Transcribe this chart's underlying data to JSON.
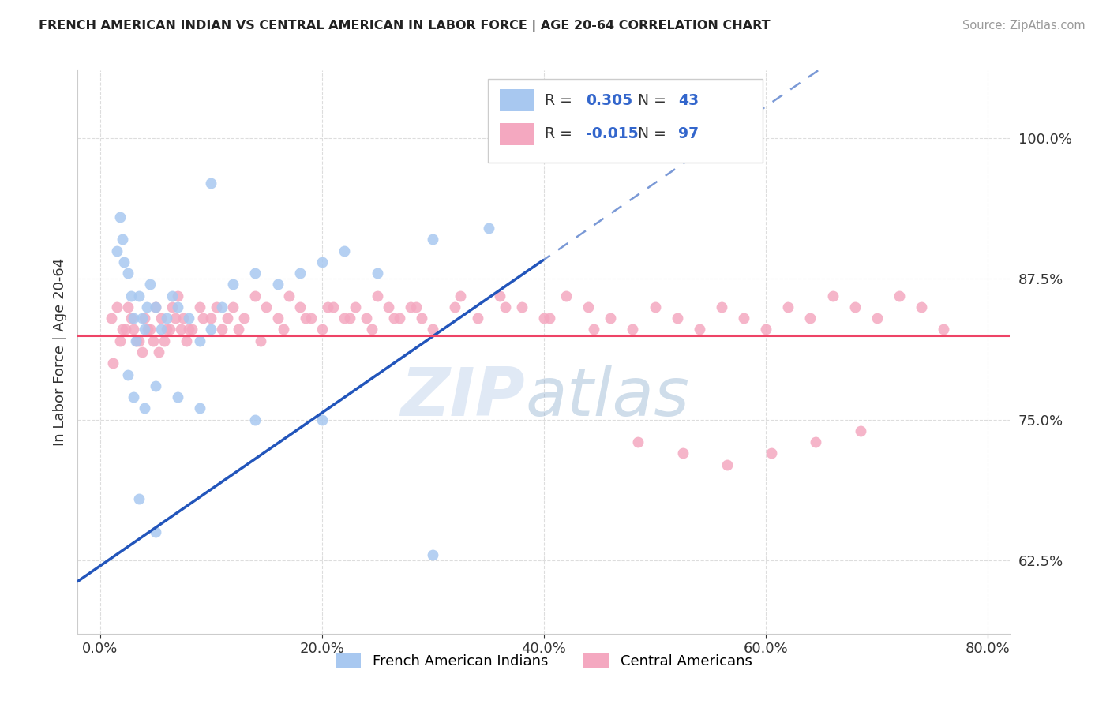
{
  "title": "FRENCH AMERICAN INDIAN VS CENTRAL AMERICAN IN LABOR FORCE | AGE 20-64 CORRELATION CHART",
  "source": "Source: ZipAtlas.com",
  "ylabel": "In Labor Force | Age 20-64",
  "x_tick_labels": [
    "0.0%",
    "20.0%",
    "40.0%",
    "60.0%",
    "80.0%"
  ],
  "x_tick_positions": [
    0.0,
    20.0,
    40.0,
    60.0,
    80.0
  ],
  "y_tick_labels": [
    "62.5%",
    "75.0%",
    "87.5%",
    "100.0%"
  ],
  "y_tick_positions": [
    62.5,
    75.0,
    87.5,
    100.0
  ],
  "xlim": [
    -2.0,
    82.0
  ],
  "ylim": [
    56.0,
    106.0
  ],
  "blue_R": 0.305,
  "blue_N": 43,
  "pink_R": -0.015,
  "pink_N": 97,
  "blue_color": "#A8C8F0",
  "pink_color": "#F4A8C0",
  "blue_line_color": "#2255BB",
  "pink_line_color": "#EE4466",
  "legend_blue_label": "French American Indians",
  "legend_pink_label": "Central Americans",
  "watermark_text": "ZIPatlas",
  "blue_x": [
    1.5,
    1.8,
    2.0,
    2.2,
    2.5,
    2.8,
    3.0,
    3.2,
    3.5,
    3.8,
    4.0,
    4.2,
    4.5,
    5.0,
    5.5,
    6.0,
    6.5,
    7.0,
    8.0,
    9.0,
    10.0,
    11.0,
    12.0,
    14.0,
    16.0,
    18.0,
    20.0,
    22.0,
    25.0,
    30.0,
    35.0,
    2.5,
    3.0,
    4.0,
    5.0,
    7.0,
    9.0,
    14.0,
    3.5,
    5.0,
    10.0,
    20.0,
    30.0
  ],
  "blue_y": [
    90.0,
    93.0,
    91.0,
    89.0,
    88.0,
    86.0,
    84.0,
    82.0,
    86.0,
    84.0,
    83.0,
    85.0,
    87.0,
    85.0,
    83.0,
    84.0,
    86.0,
    85.0,
    84.0,
    82.0,
    83.0,
    85.0,
    87.0,
    88.0,
    87.0,
    88.0,
    89.0,
    90.0,
    88.0,
    91.0,
    92.0,
    79.0,
    77.0,
    76.0,
    78.0,
    77.0,
    76.0,
    75.0,
    68.0,
    65.0,
    96.0,
    75.0,
    63.0
  ],
  "pink_x": [
    1.0,
    1.5,
    2.0,
    2.5,
    3.0,
    3.5,
    4.0,
    4.5,
    5.0,
    5.5,
    6.0,
    6.5,
    7.0,
    7.5,
    8.0,
    9.0,
    10.0,
    11.0,
    12.0,
    13.0,
    14.0,
    15.0,
    16.0,
    17.0,
    18.0,
    19.0,
    20.0,
    21.0,
    22.0,
    23.0,
    24.0,
    25.0,
    26.0,
    27.0,
    28.0,
    29.0,
    30.0,
    32.0,
    34.0,
    36.0,
    38.0,
    40.0,
    42.0,
    44.0,
    46.0,
    48.0,
    50.0,
    52.0,
    54.0,
    56.0,
    58.0,
    60.0,
    62.0,
    64.0,
    66.0,
    68.0,
    70.0,
    72.0,
    74.0,
    76.0,
    1.2,
    1.8,
    2.3,
    2.8,
    3.3,
    3.8,
    4.3,
    4.8,
    5.3,
    5.8,
    6.3,
    6.8,
    7.3,
    7.8,
    8.3,
    9.3,
    10.5,
    11.5,
    12.5,
    14.5,
    16.5,
    18.5,
    20.5,
    22.5,
    24.5,
    26.5,
    28.5,
    32.5,
    36.5,
    40.5,
    44.5,
    48.5,
    52.5,
    56.5,
    60.5,
    64.5,
    68.5
  ],
  "pink_y": [
    84.0,
    85.0,
    83.0,
    85.0,
    83.0,
    82.0,
    84.0,
    83.0,
    85.0,
    84.0,
    83.0,
    85.0,
    86.0,
    84.0,
    83.0,
    85.0,
    84.0,
    83.0,
    85.0,
    84.0,
    86.0,
    85.0,
    84.0,
    86.0,
    85.0,
    84.0,
    83.0,
    85.0,
    84.0,
    85.0,
    84.0,
    86.0,
    85.0,
    84.0,
    85.0,
    84.0,
    83.0,
    85.0,
    84.0,
    86.0,
    85.0,
    84.0,
    86.0,
    85.0,
    84.0,
    83.0,
    85.0,
    84.0,
    83.0,
    85.0,
    84.0,
    83.0,
    85.0,
    84.0,
    86.0,
    85.0,
    84.0,
    86.0,
    85.0,
    83.0,
    80.0,
    82.0,
    83.0,
    84.0,
    82.0,
    81.0,
    83.0,
    82.0,
    81.0,
    82.0,
    83.0,
    84.0,
    83.0,
    82.0,
    83.0,
    84.0,
    85.0,
    84.0,
    83.0,
    82.0,
    83.0,
    84.0,
    85.0,
    84.0,
    83.0,
    84.0,
    85.0,
    86.0,
    85.0,
    84.0,
    83.0,
    73.0,
    72.0,
    71.0,
    72.0,
    73.0,
    74.0
  ]
}
